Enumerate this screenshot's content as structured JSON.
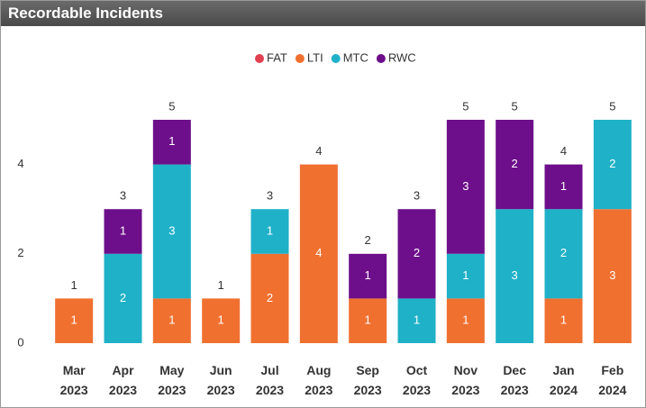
{
  "header": {
    "title": "Recordable Incidents"
  },
  "chart_data": {
    "type": "stacked_bar",
    "categories": [
      "Mar 2023",
      "Apr 2023",
      "May 2023",
      "Jun 2023",
      "Jul 2023",
      "Aug 2023",
      "Sep 2023",
      "Oct 2023",
      "Nov 2023",
      "Dec 2023",
      "Jan 2024",
      "Feb 2024"
    ],
    "series": [
      {
        "name": "FAT",
        "color": "#e0404f",
        "values": [
          null,
          null,
          null,
          null,
          null,
          null,
          null,
          null,
          null,
          null,
          null,
          null
        ]
      },
      {
        "name": "LTI",
        "color": "#f07030",
        "values": [
          1,
          null,
          1,
          1,
          2,
          4,
          1,
          null,
          1,
          null,
          1,
          3
        ]
      },
      {
        "name": "MTC",
        "color": "#1fb1c8",
        "values": [
          null,
          2,
          3,
          null,
          1,
          null,
          null,
          1,
          1,
          3,
          2,
          2
        ]
      },
      {
        "name": "RWC",
        "color": "#6d0f8a",
        "values": [
          null,
          1,
          1,
          null,
          null,
          null,
          1,
          2,
          3,
          2,
          1,
          null
        ]
      }
    ],
    "totals": [
      1,
      3,
      5,
      1,
      3,
      4,
      2,
      3,
      5,
      5,
      4,
      5
    ],
    "ylim": [
      0,
      5
    ],
    "yticks": [
      0,
      2,
      4
    ],
    "grid": false,
    "legend": "top"
  }
}
